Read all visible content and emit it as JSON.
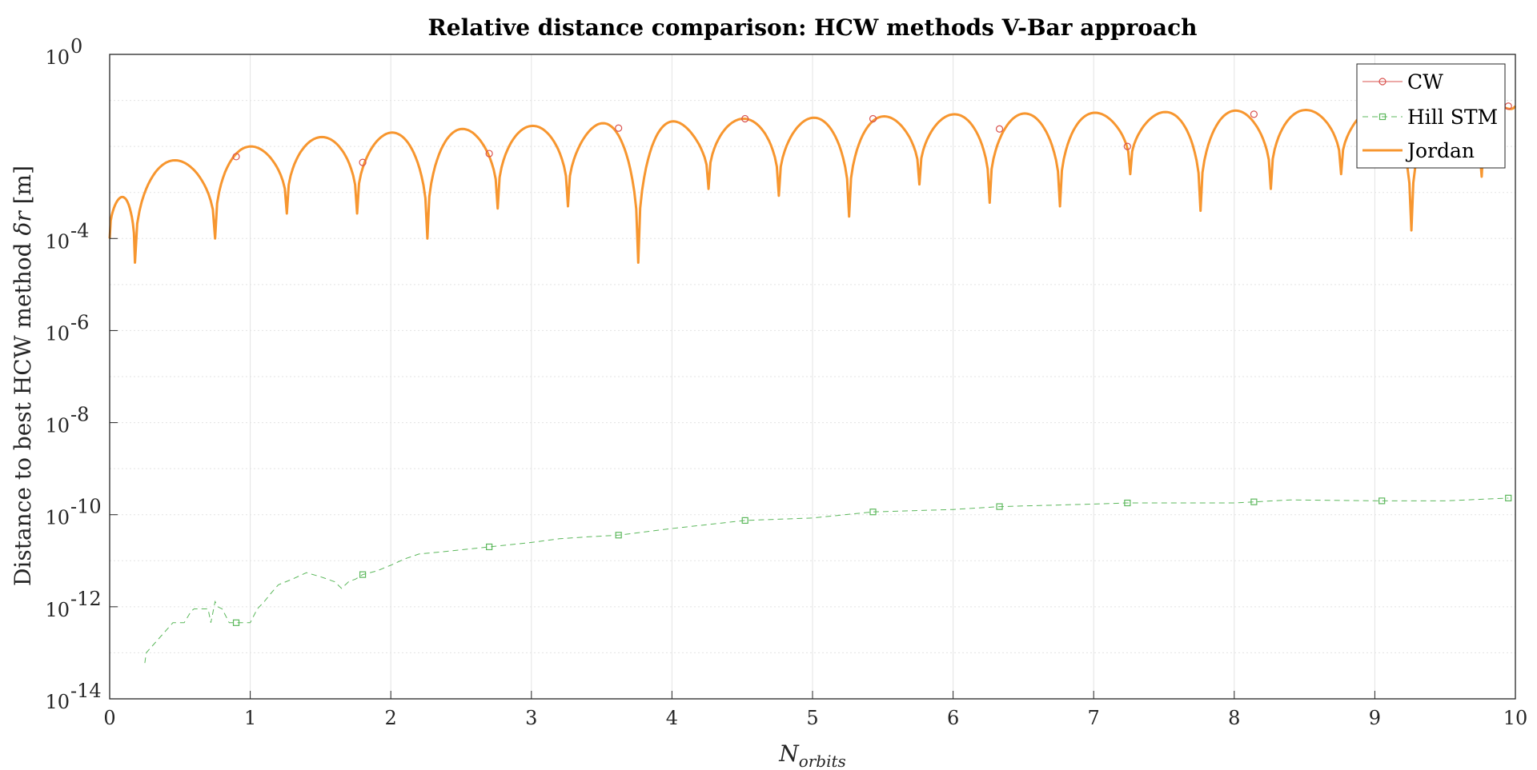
{
  "chart_data": {
    "type": "line",
    "title": "Relative distance comparison: HCW methods V-Bar approach",
    "xlabel": {
      "base": "N",
      "sub": "orbits"
    },
    "ylabel": {
      "prefix": "Distance to best HCW method ",
      "var": "δr",
      "suffix": " [m]"
    },
    "scale_y": "log",
    "xlim": [
      0,
      10
    ],
    "ylim": [
      1e-14,
      1
    ],
    "grid": true,
    "legend_position": "top-right",
    "x_ticks": [
      0,
      1,
      2,
      3,
      4,
      5,
      6,
      7,
      8,
      9,
      10
    ],
    "x_tick_labels": [
      "0",
      "1",
      "2",
      "3",
      "4",
      "5",
      "6",
      "7",
      "8",
      "9",
      "10"
    ],
    "y_ticks": [
      {
        "value": 1e-14,
        "base": "10",
        "exp": "-14"
      },
      {
        "value": 1e-12,
        "base": "10",
        "exp": "-12"
      },
      {
        "value": 1e-10,
        "base": "10",
        "exp": "-10"
      },
      {
        "value": 1e-08,
        "base": "10",
        "exp": "-8"
      },
      {
        "value": 1e-06,
        "base": "10",
        "exp": "-6"
      },
      {
        "value": 0.0001,
        "base": "10",
        "exp": "-4"
      },
      {
        "value": 1,
        "base": "10",
        "exp": "0"
      }
    ],
    "series": [
      {
        "name": "CW",
        "color": "#d9534f",
        "marker": "circle",
        "style": "solid",
        "x": [
          0.9,
          1.8,
          2.7,
          3.62,
          4.52,
          5.43,
          6.33,
          7.24,
          8.14,
          9.95
        ],
        "y": [
          0.006,
          0.0045,
          0.007,
          0.025,
          0.04,
          0.04,
          0.024,
          0.01,
          0.05,
          0.075
        ]
      },
      {
        "name": "Hill STM",
        "color": "#5cb85c",
        "marker": "square",
        "style": "dashed",
        "x": [
          0.25,
          0.26,
          0.45,
          0.53,
          0.58,
          0.6,
          0.7,
          0.72,
          0.75,
          0.77,
          0.8,
          0.85,
          0.9,
          1.0,
          1.05,
          1.1,
          1.15,
          1.2,
          1.3,
          1.4,
          1.5,
          1.6,
          1.65,
          1.7,
          1.75,
          1.8,
          1.9,
          2.0,
          2.1,
          2.2,
          2.4,
          2.7,
          3.0,
          3.2,
          3.4,
          3.62,
          4.0,
          4.52,
          5.0,
          5.43,
          6.0,
          6.33,
          7.0,
          7.24,
          8.0,
          8.14,
          8.4,
          9.05,
          9.5,
          9.95
        ],
        "y": [
          6e-14,
          1e-13,
          4.5e-13,
          4.5e-13,
          8e-13,
          9e-13,
          9e-13,
          4.5e-13,
          1.3e-12,
          1e-12,
          9e-13,
          4.5e-13,
          4.5e-13,
          4.5e-13,
          9e-13,
          1.3e-12,
          2e-12,
          3e-12,
          4e-12,
          5.5e-12,
          4.5e-12,
          3.5e-12,
          2.5e-12,
          3.5e-12,
          4e-12,
          5e-12,
          6e-12,
          8e-12,
          1.1e-11,
          1.4e-11,
          1.6e-11,
          2e-11,
          2.5e-11,
          3e-11,
          3.3e-11,
          3.6e-11,
          5e-11,
          7.5e-11,
          8.5e-11,
          1.15e-10,
          1.3e-10,
          1.5e-10,
          1.7e-10,
          1.8e-10,
          1.8e-10,
          1.9e-10,
          2.1e-10,
          2e-10,
          2e-10,
          2.3e-10
        ]
      },
      {
        "name": "Jordan",
        "color": "#f7962f",
        "marker": "none",
        "style": "solid"
      }
    ]
  }
}
